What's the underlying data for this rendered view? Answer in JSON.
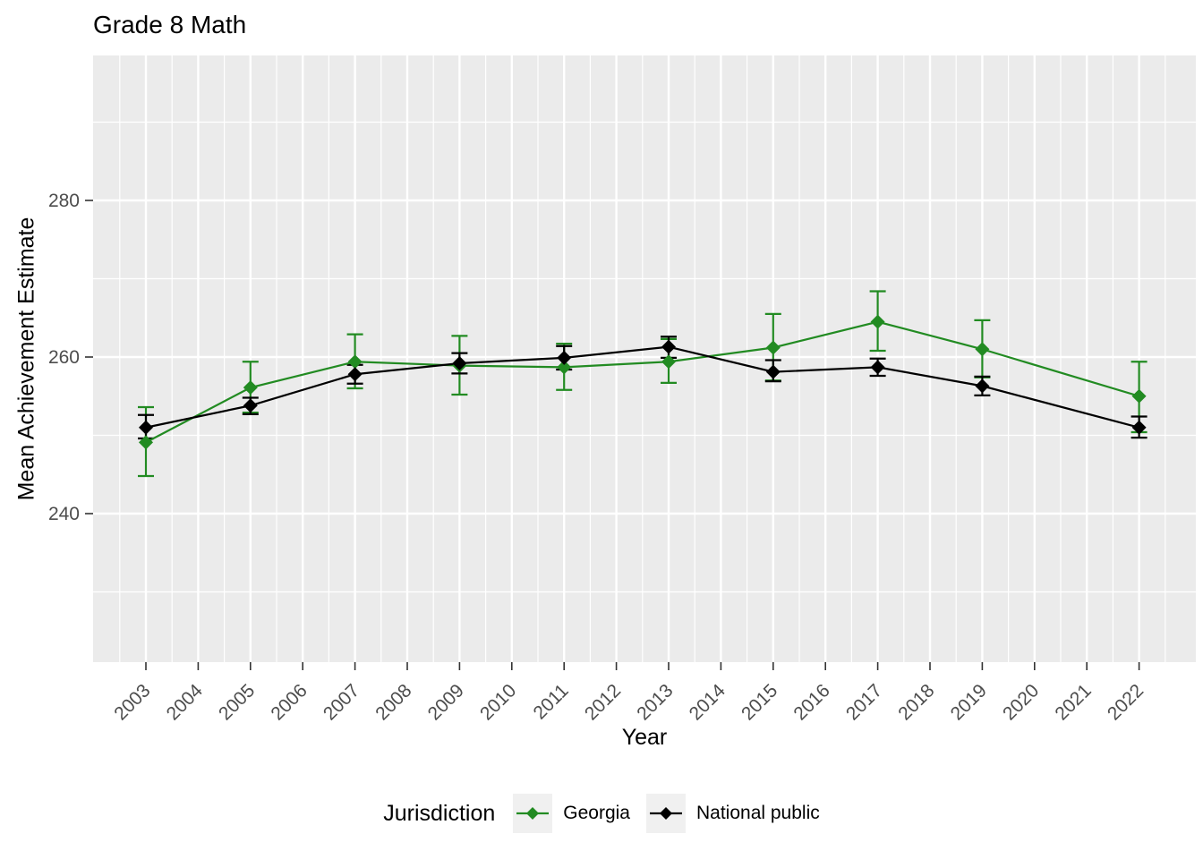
{
  "title": "Grade 8 Math",
  "legend": {
    "title": "Jurisdiction",
    "items": [
      "Georgia",
      "National public"
    ]
  },
  "axes": {
    "x_label": "Year",
    "y_label": "Mean Achievement Estimate",
    "x_tick_labels": [
      "2003",
      "2004",
      "2005",
      "2006",
      "2007",
      "2008",
      "2009",
      "2010",
      "2011",
      "2012",
      "2013",
      "2014",
      "2015",
      "2016",
      "2017",
      "2018",
      "2019",
      "2020",
      "2021",
      "2022"
    ],
    "y_tick_labels": [
      "240",
      "260",
      "280"
    ]
  },
  "colors": {
    "georgia_green": "#228B22",
    "national_black": "#000000",
    "panel_background": "#EBEBEB",
    "gridline": "#FFFFFF",
    "tick_mark": "#333333",
    "tick_label": "#4D4D4D",
    "legend_key_background": "#F0F0F0"
  },
  "chart_data": {
    "type": "line",
    "title": "Grade 8 Math",
    "xlabel": "Year",
    "ylabel": "Mean Achievement Estimate",
    "x": [
      2003,
      2005,
      2007,
      2009,
      2011,
      2013,
      2015,
      2017,
      2019,
      2022
    ],
    "series": [
      {
        "name": "Georgia",
        "color": "#228B22",
        "values": [
          249.1,
          256.1,
          259.4,
          258.9,
          258.7,
          259.4,
          261.2,
          264.5,
          261.0,
          255.0
        ],
        "ci_low": [
          244.8,
          252.9,
          256.0,
          255.2,
          255.8,
          256.7,
          257.0,
          260.8,
          257.4,
          250.4
        ],
        "ci_high": [
          253.6,
          259.4,
          262.9,
          262.7,
          261.7,
          262.3,
          265.5,
          268.4,
          264.7,
          259.4
        ]
      },
      {
        "name": "National public",
        "color": "#000000",
        "values": [
          251.0,
          253.8,
          257.8,
          259.2,
          259.9,
          261.3,
          258.1,
          258.7,
          256.3,
          251.0
        ],
        "ci_low": [
          249.6,
          252.7,
          256.6,
          257.9,
          258.4,
          259.9,
          256.9,
          257.6,
          255.1,
          249.7
        ],
        "ci_high": [
          252.6,
          254.8,
          259.0,
          260.5,
          261.4,
          262.6,
          259.6,
          259.8,
          257.5,
          252.4
        ]
      }
    ],
    "x_major_ticks": [
      2003,
      2004,
      2005,
      2006,
      2007,
      2008,
      2009,
      2010,
      2011,
      2012,
      2013,
      2014,
      2015,
      2016,
      2017,
      2018,
      2019,
      2020,
      2021,
      2022
    ],
    "y_major_ticks": [
      240,
      260,
      280
    ],
    "y_minor_ticks": [
      230,
      250,
      270,
      290
    ],
    "ylim": [
      221,
      298.5
    ],
    "xlim": [
      2002,
      2023
    ],
    "grid": true,
    "point_shape": "diamond",
    "error_bars": true,
    "legend_position": "bottom"
  }
}
